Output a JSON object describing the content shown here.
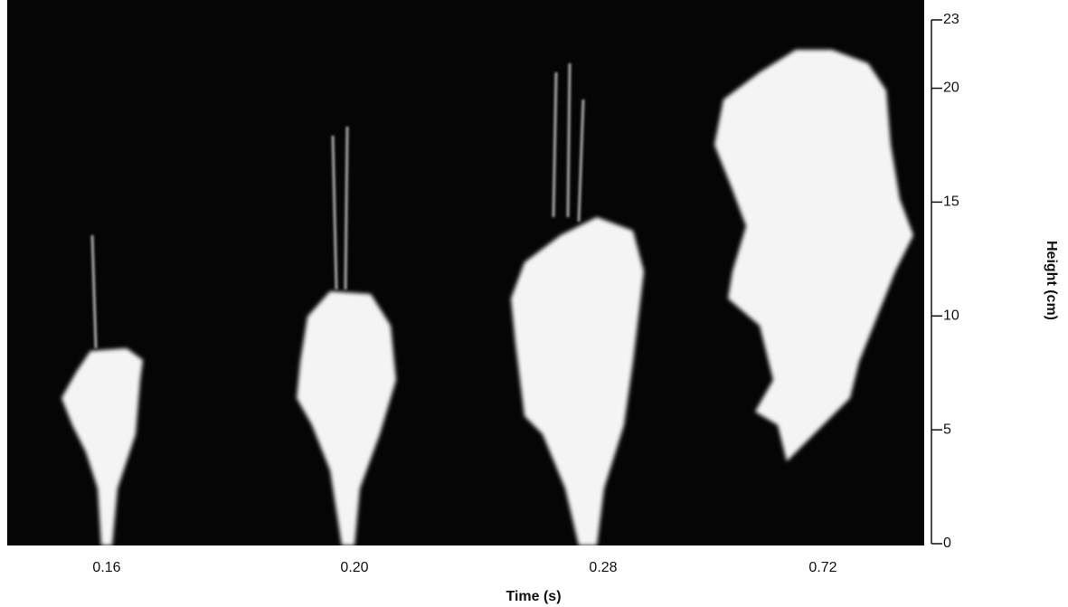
{
  "time_axis": {
    "title": "Time (s)",
    "labels": [
      "0.16",
      "0.20",
      "0.28",
      "0.72"
    ]
  },
  "height_axis": {
    "title": "Height (cm)",
    "range": [
      0,
      23
    ],
    "ticks": [
      0,
      5,
      10,
      15,
      20,
      23
    ]
  }
}
